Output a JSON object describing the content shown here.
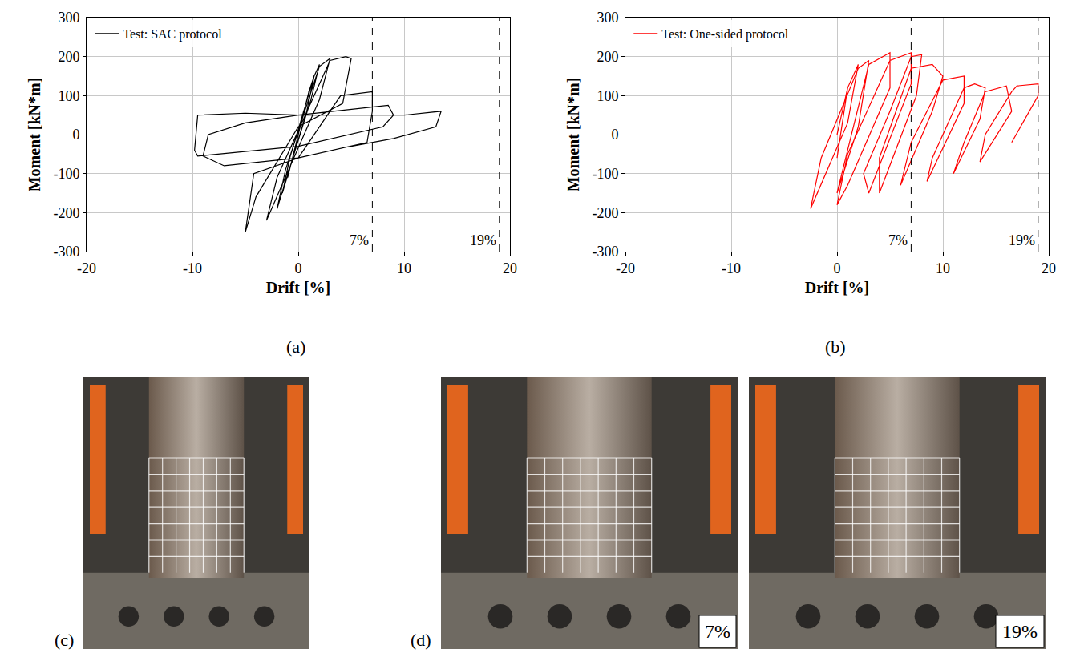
{
  "chart_data": [
    {
      "type": "line",
      "panel_label": "(a)",
      "x": [
        0,
        0.5,
        -0.5,
        0.5,
        0,
        1,
        -1,
        1,
        1.5,
        0.8,
        -1.5,
        -0.8,
        1.5,
        2,
        1.2,
        -2,
        -1.2,
        2,
        3,
        2,
        -3,
        -2,
        3,
        4.5,
        5,
        4.2,
        0,
        -4,
        -5,
        -4.2,
        0,
        4,
        7,
        7,
        6.5,
        0,
        -7,
        -9,
        -8.5,
        -5,
        0,
        8.5,
        9,
        8,
        0,
        -6,
        -9.5,
        -9.8,
        -9.5,
        -5,
        0,
        10,
        13.5,
        13,
        9,
        5
      ],
      "series": [
        {
          "name": "Test: SAC protocol",
          "color": "#000000",
          "values": [
            0,
            60,
            -60,
            60,
            0,
            110,
            -110,
            110,
            150,
            60,
            -150,
            -60,
            150,
            180,
            90,
            -190,
            -90,
            175,
            195,
            90,
            -220,
            -110,
            190,
            200,
            195,
            80,
            20,
            -160,
            -250,
            -100,
            -60,
            100,
            110,
            60,
            -20,
            -60,
            -80,
            -55,
            0,
            30,
            50,
            75,
            50,
            20,
            -30,
            -45,
            -55,
            -40,
            50,
            55,
            50,
            50,
            60,
            20,
            -10,
            -30
          ]
        }
      ],
      "xlabel": "Drift [%]",
      "ylabel": "Moment [kN*m]",
      "xlim": [
        -20,
        20
      ],
      "ylim": [
        -300,
        300
      ],
      "xticks": [
        -20,
        -10,
        0,
        10,
        20
      ],
      "yticks": [
        -300,
        -200,
        -100,
        0,
        100,
        200,
        300
      ],
      "grid": true,
      "legend": "upper left",
      "reference_lines": [
        {
          "x": 7,
          "label": "7%",
          "line_style": "dashed"
        },
        {
          "x": 19,
          "label": "19%",
          "line_style": "dashed"
        }
      ]
    },
    {
      "type": "line",
      "panel_label": "(b)",
      "x": [
        0,
        1,
        0,
        1,
        2,
        1,
        -2.5,
        -1.5,
        2,
        3,
        2,
        0,
        1,
        3,
        5,
        5,
        1,
        0,
        1,
        5,
        7,
        7,
        3,
        2.5,
        5,
        7,
        8,
        7.5,
        4,
        4,
        7,
        9,
        10,
        9,
        6,
        7,
        10,
        12,
        12,
        8.5,
        9,
        12,
        13,
        14,
        13.5,
        11,
        12,
        14,
        16,
        16.5,
        13.5,
        14,
        16.5,
        17,
        19,
        19,
        16.5
      ],
      "series": [
        {
          "name": "Test: One-sided protocol",
          "color": "#ff0000",
          "values": [
            0,
            120,
            -60,
            120,
            180,
            30,
            -190,
            -60,
            170,
            190,
            20,
            -150,
            -40,
            180,
            210,
            120,
            -130,
            -180,
            -50,
            190,
            210,
            130,
            -150,
            -100,
            60,
            200,
            205,
            100,
            -150,
            -60,
            170,
            180,
            150,
            60,
            -130,
            -20,
            140,
            150,
            80,
            -120,
            -60,
            120,
            130,
            120,
            40,
            -100,
            -20,
            110,
            125,
            60,
            -70,
            0,
            110,
            125,
            130,
            100,
            -20
          ]
        }
      ],
      "xlabel": "Drift [%]",
      "ylabel": "Moment [kN*m]",
      "xlim": [
        -20,
        20
      ],
      "ylim": [
        -300,
        300
      ],
      "xticks": [
        -20,
        -10,
        0,
        10,
        20
      ],
      "yticks": [
        -300,
        -200,
        -100,
        0,
        100,
        200,
        300
      ],
      "grid": true,
      "legend": "upper left",
      "reference_lines": [
        {
          "x": 7,
          "label": "7%",
          "line_style": "dashed"
        },
        {
          "x": 19,
          "label": "19%",
          "line_style": "dashed"
        }
      ]
    }
  ],
  "photos": [
    {
      "panel_label": "(c)"
    },
    {
      "panel_label": "(d)",
      "captions": [
        "7%",
        "19%"
      ]
    }
  ]
}
